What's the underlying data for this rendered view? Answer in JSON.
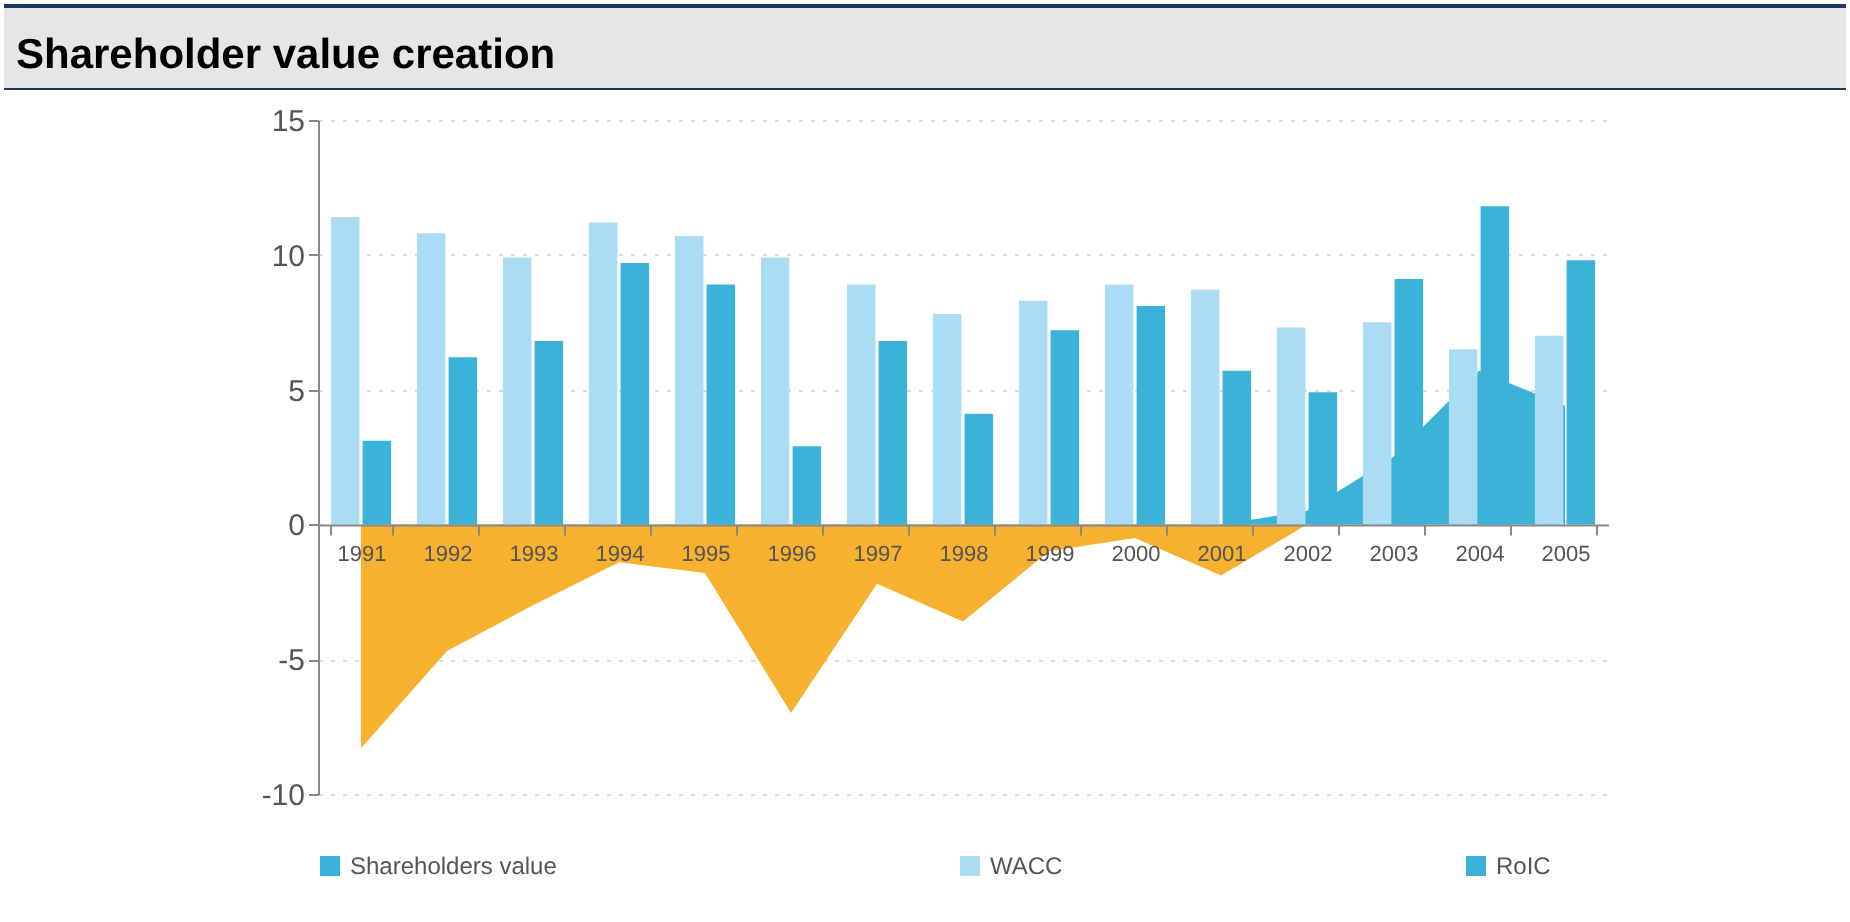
{
  "chart_data": {
    "type": "bar",
    "title": "Shareholder value creation",
    "categories": [
      "1991",
      "1992",
      "1993",
      "1994",
      "1995",
      "1996",
      "1997",
      "1998",
      "1999",
      "2000",
      "2001",
      "2002",
      "2003",
      "2004",
      "2005"
    ],
    "series": [
      {
        "name": "Shareholders value",
        "type": "area",
        "color": "#3bb3d9",
        "values": [
          null,
          null,
          null,
          null,
          null,
          null,
          null,
          null,
          null,
          null,
          0,
          0.5,
          2.5,
          5.7,
          4.4
        ]
      },
      {
        "name": "WACC",
        "color": "#aadcf3",
        "values": [
          11.4,
          10.8,
          9.9,
          11.2,
          10.7,
          9.9,
          8.9,
          7.8,
          8.3,
          8.9,
          8.7,
          7.3,
          7.5,
          6.5,
          7.0
        ]
      },
      {
        "name": "RoIC",
        "color": "#3bb3d9",
        "values": [
          3.1,
          6.2,
          6.8,
          9.7,
          8.9,
          2.9,
          6.8,
          4.1,
          7.2,
          8.1,
          5.7,
          4.9,
          9.1,
          11.8,
          9.8
        ]
      },
      {
        "type": "area",
        "color": "#f7b12f",
        "values": [
          -8.3,
          -4.7,
          -3.0,
          -1.4,
          -1.8,
          -7.0,
          -2.2,
          -3.6,
          -1.0,
          -0.5,
          -1.9,
          0,
          null,
          null,
          null
        ]
      }
    ],
    "ylim": [
      -10,
      15
    ],
    "yticks": [
      -10,
      -5,
      0,
      5,
      10,
      15
    ],
    "grid": "y",
    "legend": "bottom"
  }
}
